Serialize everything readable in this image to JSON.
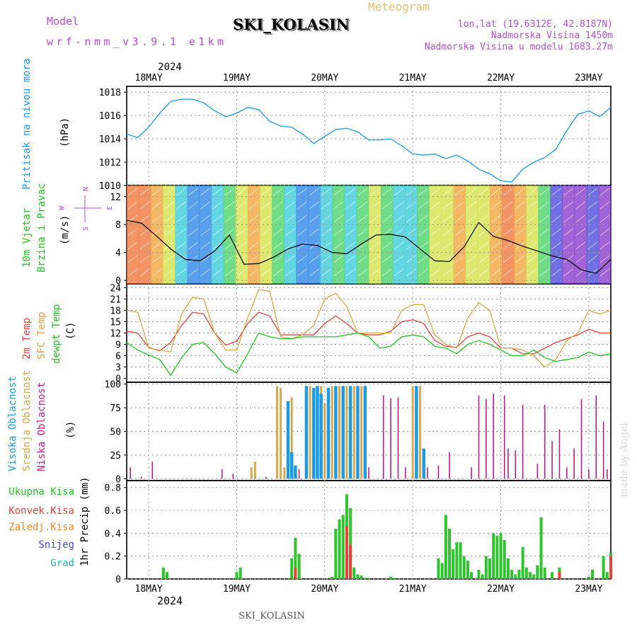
{
  "header": {
    "model_label": "Model",
    "model_name": "wrf-nmm_v3.9.1 e1km",
    "title": "SKI_KOLASIN",
    "subtitle": "Meteogram",
    "lonlat": "lon,lat (19.6312E, 42.8187N)",
    "elevation": "Nadmorska Visina 1450m",
    "model_elevation": "Nadmorska Visina u modelu 1683.27m",
    "footer_title": "SKI_KOLASIN",
    "watermark": "made by Angel"
  },
  "time_axis": {
    "year": "2024",
    "days": [
      "18MAY",
      "19MAY",
      "20MAY",
      "21MAY",
      "22MAY",
      "23MAY"
    ],
    "start_hour": 18,
    "hours": 132
  },
  "colors": {
    "pressure": "#1e9be0",
    "wind_speed": "#000000",
    "temp2m": "#e8413a",
    "sfc_temp": "#d8a84a",
    "dewpoint": "#22c422",
    "cloud_high": "#1e9be0",
    "cloud_mid": "#d8a84a",
    "cloud_low": "#c01a8c",
    "precip_total": "#2ec42e",
    "precip_conv": "#e8413a",
    "precip_snow": "#4646e0",
    "precip_grad": "#20b4b4",
    "precip_freezing": "#f08a30"
  },
  "chart_data": [
    {
      "type": "line",
      "panel": "pressure",
      "ylabel": [
        "Pritisak na nivou mora",
        "(hPa)"
      ],
      "ylim": [
        1010,
        1018.5
      ],
      "yticks": [
        1010,
        1012,
        1014,
        1016,
        1018
      ],
      "grid": true,
      "series": [
        {
          "x_hours": [
            0,
            3,
            6,
            9,
            12,
            15,
            18,
            21,
            24,
            27,
            30,
            33,
            36,
            39,
            42,
            45,
            48,
            51,
            54,
            57,
            60,
            63,
            66,
            69,
            72,
            75,
            78,
            81,
            84,
            87,
            90,
            93,
            96,
            99,
            102,
            105,
            108,
            111,
            114,
            117,
            120,
            123,
            126,
            129,
            132
          ],
          "values": [
            1014.4,
            1014.1,
            1015.0,
            1016.2,
            1017.2,
            1017.4,
            1017.4,
            1017.1,
            1016.4,
            1015.9,
            1016.2,
            1016.7,
            1016.5,
            1015.5,
            1015.1,
            1015.0,
            1014.4,
            1013.6,
            1014.2,
            1014.8,
            1014.9,
            1014.6,
            1013.9,
            1013.9,
            1014.0,
            1013.4,
            1012.7,
            1012.6,
            1012.7,
            1012.3,
            1012.6,
            1012.1,
            1011.4,
            1011.0,
            1010.4,
            1010.3,
            1011.4,
            1012.0,
            1012.4,
            1013.1,
            1014.7,
            1016.1,
            1016.4,
            1015.9,
            1016.7
          ]
        }
      ]
    },
    {
      "type": "line",
      "panel": "wind",
      "ylabel": [
        "10m Vjetar",
        "Brzina i Pravac",
        "(m/s)"
      ],
      "compass": [
        "N",
        "E",
        "S",
        "W"
      ],
      "ylim": [
        -0.5,
        13.6
      ],
      "yticks": [
        0,
        4,
        8,
        12
      ],
      "grid": true,
      "series": [
        {
          "name": "wind_speed",
          "x_hours": [
            0,
            4,
            8,
            12,
            16,
            20,
            24,
            28,
            32,
            36,
            40,
            44,
            48,
            52,
            56,
            60,
            64,
            68,
            72,
            76,
            80,
            84,
            88,
            92,
            96,
            100,
            104,
            108,
            112,
            116,
            120,
            124,
            128,
            132
          ],
          "values": [
            8.6,
            8.2,
            6.4,
            4.5,
            3.0,
            2.8,
            4.2,
            6.5,
            2.3,
            2.4,
            3.3,
            4.5,
            5.2,
            5.0,
            4.0,
            3.8,
            5.2,
            6.5,
            6.6,
            6.2,
            4.5,
            2.8,
            2.7,
            4.8,
            8.3,
            6.3,
            5.7,
            4.9,
            4.2,
            3.5,
            3.0,
            1.5,
            1.0,
            3.0
          ]
        }
      ]
    },
    {
      "type": "line",
      "panel": "temperature",
      "ylabel": [
        "2m Temp",
        "SFC Temp",
        "dewpt Temp",
        "(C)"
      ],
      "ylim": [
        -1,
        25
      ],
      "yticks": [
        0,
        3,
        6,
        9,
        12,
        15,
        18,
        21,
        24
      ],
      "grid": true,
      "x_hours": [
        0,
        3,
        6,
        9,
        12,
        15,
        18,
        21,
        24,
        27,
        30,
        33,
        36,
        39,
        42,
        45,
        48,
        51,
        54,
        57,
        60,
        63,
        66,
        69,
        72,
        75,
        78,
        81,
        84,
        87,
        90,
        93,
        96,
        99,
        102,
        105,
        108,
        111,
        114,
        117,
        120,
        123,
        126,
        129,
        132
      ],
      "series": [
        {
          "name": "2m Temp",
          "values": [
            12.5,
            12.0,
            8.2,
            7.3,
            9.5,
            14.0,
            17.5,
            17.0,
            12.0,
            8.8,
            9.8,
            14.5,
            17.5,
            16.5,
            11.5,
            11.5,
            11.5,
            11.5,
            14.5,
            16.5,
            14.5,
            12.0,
            11.5,
            11.5,
            12.5,
            15.0,
            15.5,
            14.5,
            10.0,
            8.5,
            8.2,
            11.0,
            12.0,
            11.0,
            8.0,
            8.0,
            6.5,
            6.5,
            8.0,
            9.5,
            10.5,
            11.5,
            13.0,
            12.0,
            12.0
          ]
        },
        {
          "name": "SFC Temp",
          "values": [
            18.0,
            17.5,
            8.0,
            7.5,
            7.0,
            17.0,
            21.5,
            21.0,
            12.0,
            7.5,
            7.5,
            16.0,
            23.5,
            23.0,
            11.0,
            10.5,
            11.5,
            14.0,
            21.0,
            22.5,
            19.0,
            12.0,
            12.0,
            12.0,
            12.0,
            18.0,
            19.5,
            19.5,
            11.5,
            9.0,
            8.0,
            16.0,
            20.0,
            18.0,
            8.0,
            8.0,
            7.5,
            6.0,
            3.0,
            5.0,
            10.0,
            12.0,
            18.0,
            17.0,
            18.0
          ]
        },
        {
          "name": "dewpt Temp",
          "values": [
            9.5,
            7.5,
            6.2,
            5.0,
            0.8,
            5.5,
            9.0,
            9.5,
            6.5,
            3.0,
            1.5,
            6.5,
            12.0,
            11.0,
            10.5,
            10.5,
            11.0,
            11.0,
            11.0,
            11.0,
            11.5,
            12.0,
            11.0,
            8.0,
            8.5,
            11.0,
            11.5,
            11.0,
            8.5,
            8.0,
            6.5,
            9.0,
            10.0,
            9.0,
            7.5,
            6.0,
            6.0,
            7.5,
            5.5,
            4.5,
            5.0,
            5.5,
            7.0,
            6.0,
            6.5
          ]
        }
      ]
    },
    {
      "type": "bar",
      "panel": "clouds",
      "ylabel": [
        "Visoka Oblacnost",
        "Srednja Oblacnost",
        "Niska Oblacnost",
        "(%)"
      ],
      "ylim": [
        -2,
        102
      ],
      "yticks": [
        0,
        25,
        50,
        75,
        100
      ],
      "grid": true,
      "series": [
        {
          "name": "Niska Oblacnost",
          "x_hours": [
            1,
            4,
            7,
            20,
            22,
            26,
            29,
            33,
            36,
            38,
            47,
            48,
            52,
            54,
            57,
            60,
            62,
            64,
            66,
            70,
            72,
            74,
            76,
            78,
            82,
            85,
            88,
            94,
            96,
            98,
            100,
            103,
            104,
            106,
            108,
            112,
            114,
            116,
            118,
            120,
            122,
            124,
            126,
            128,
            130,
            131
          ],
          "values": [
            12,
            2,
            18,
            0,
            0,
            10,
            5,
            0,
            0,
            2,
            10,
            0,
            8,
            12,
            5,
            10,
            8,
            14,
            12,
            88,
            85,
            86,
            12,
            10,
            12,
            14,
            28,
            12,
            88,
            84,
            90,
            88,
            32,
            30,
            78,
            16,
            78,
            40,
            52,
            12,
            32,
            84,
            10,
            88,
            60,
            10
          ]
        },
        {
          "name": "Srednja Oblacnost",
          "x_hours": [
            34,
            35,
            41,
            42,
            43,
            45,
            50,
            53,
            54,
            56,
            58,
            60,
            61,
            62,
            63,
            64,
            65,
            78,
            80
          ],
          "values": [
            12,
            18,
            98,
            96,
            12,
            86,
            98,
            98,
            80,
            98,
            98,
            98,
            98,
            98,
            98,
            98,
            94,
            98,
            98
          ]
        },
        {
          "name": "Visoka Oblacnost",
          "x_hours": [
            44,
            45,
            46,
            49,
            51,
            52,
            53,
            55,
            57,
            59,
            61,
            63,
            65,
            79,
            81
          ],
          "values": [
            82,
            28,
            14,
            98,
            96,
            98,
            90,
            96,
            98,
            98,
            98,
            98,
            98,
            98,
            32
          ]
        }
      ]
    },
    {
      "type": "bar",
      "panel": "precipitation",
      "ylabel": [
        "1hr Precip (mm)"
      ],
      "legend": [
        "Ukupna Kisa",
        "Konvek.Kisa",
        "Zaledj.Kisa",
        "Snijeg",
        "Grad"
      ],
      "ylim": [
        0,
        0.86
      ],
      "yticks": [
        0,
        0.2,
        0.4,
        0.6,
        0.8
      ],
      "grid": true,
      "series": [
        {
          "name": "Ukupna Kisa",
          "x_hours": [
            10,
            11,
            30,
            31,
            45,
            46,
            47,
            56,
            57,
            58,
            59,
            60,
            61,
            62,
            63,
            64,
            65,
            66,
            72,
            73,
            85,
            86,
            87,
            88,
            89,
            90,
            91,
            92,
            93,
            94,
            96,
            97,
            98,
            99,
            100,
            101,
            102,
            103,
            104,
            105,
            106,
            107,
            108,
            109,
            110,
            111,
            112,
            113,
            114,
            116,
            118,
            126,
            127,
            130,
            131,
            132
          ],
          "values": [
            0.1,
            0.06,
            0.06,
            0.1,
            0.18,
            0.36,
            0.22,
            0.02,
            0.44,
            0.52,
            0.56,
            0.74,
            0.62,
            0.1,
            0.04,
            0.03,
            0.01,
            0.01,
            0.02,
            0.01,
            0.18,
            0.14,
            0.56,
            0.44,
            0.26,
            0.32,
            0.32,
            0.2,
            0.16,
            0.06,
            0.08,
            0.04,
            0.2,
            0.18,
            0.4,
            0.38,
            0.4,
            0.34,
            0.18,
            0.08,
            0.04,
            0.08,
            0.28,
            0.1,
            0.06,
            0.04,
            0.12,
            0.54,
            0.1,
            0.06,
            0.1,
            0.02,
            0.08,
            0.2,
            0.06,
            0.23
          ]
        },
        {
          "name": "Konvek.Kisa",
          "x_hours": [
            46,
            60,
            61,
            118,
            132
          ],
          "values": [
            0.1,
            0.46,
            0.3,
            0.06,
            0.2
          ]
        }
      ]
    }
  ]
}
